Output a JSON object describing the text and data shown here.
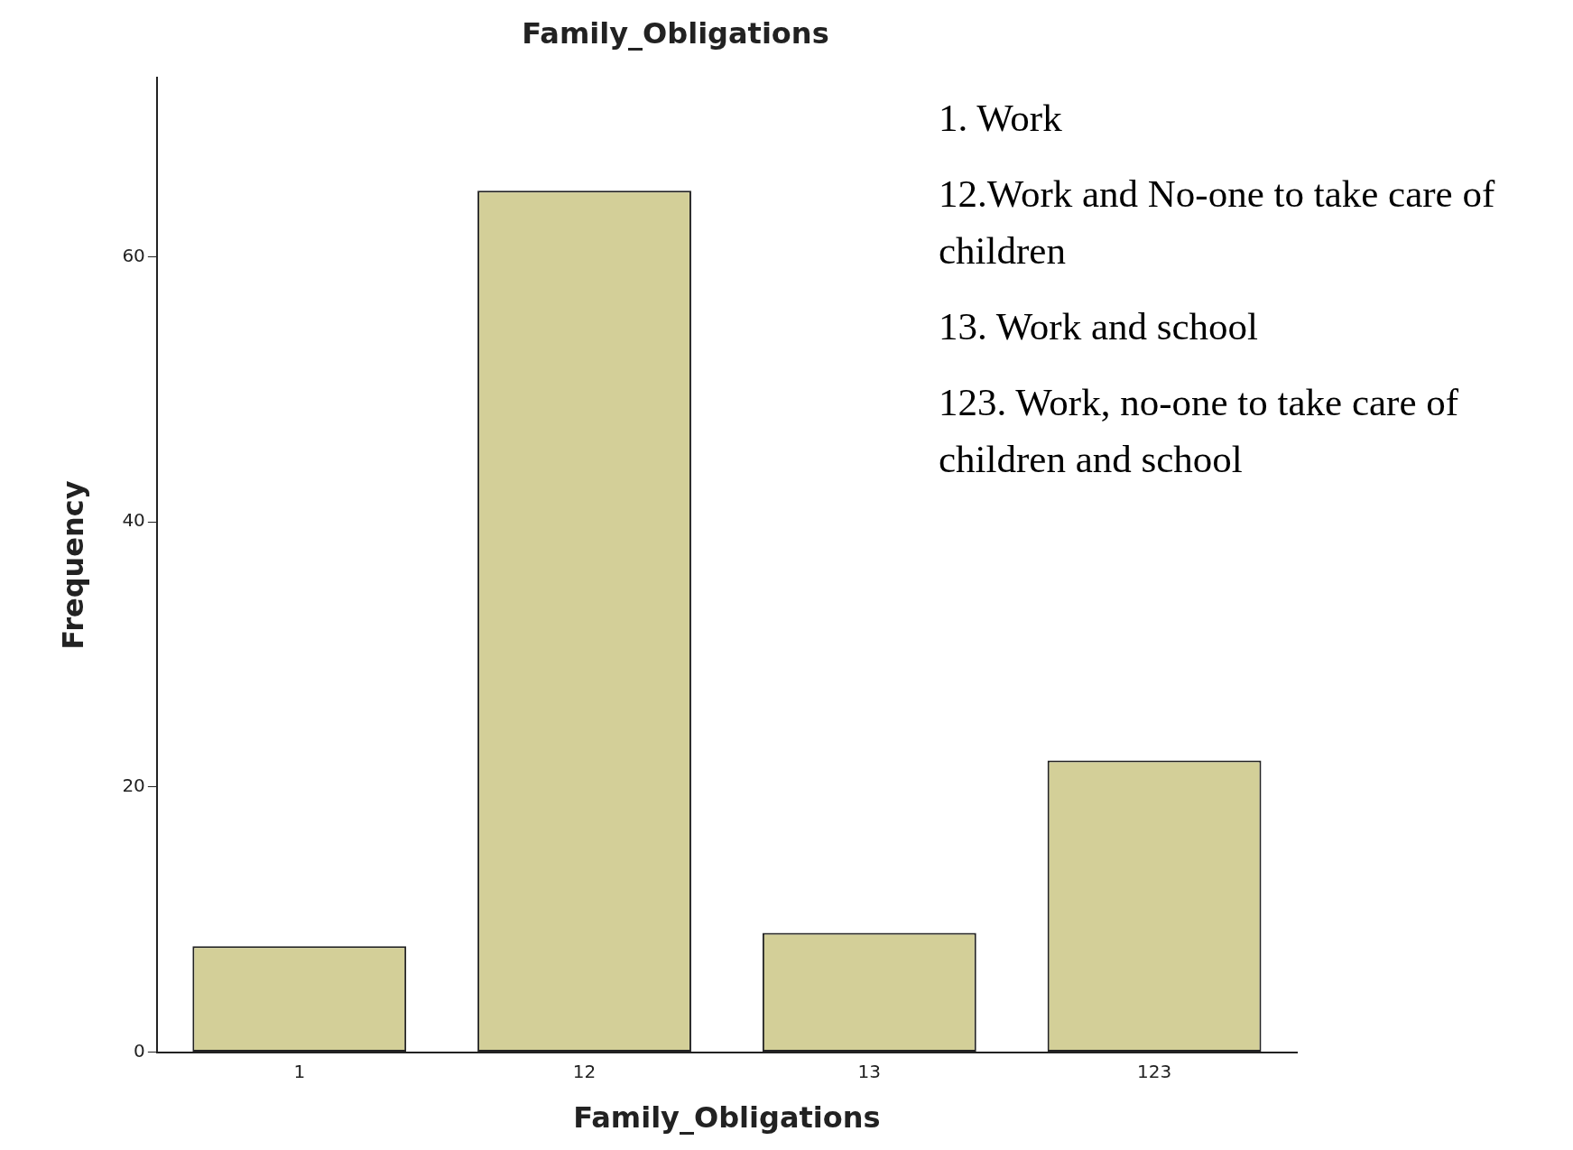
{
  "chart_data": {
    "type": "bar",
    "title": "Family_Obligations",
    "xlabel": "Family_Obligations",
    "ylabel": "Frequency",
    "categories": [
      "1",
      "12",
      "13",
      "123"
    ],
    "values": [
      8,
      65,
      9,
      22
    ],
    "color": "#d3cf98",
    "ylim": [
      0,
      73.5
    ],
    "yticks": [
      0,
      20,
      40,
      60
    ],
    "grid": false,
    "legend": false,
    "annotations": [
      "1. Work",
      "12.Work and No-one to take care of children",
      "13. Work and school",
      "123. Work, no-one to take care of children and school"
    ]
  }
}
